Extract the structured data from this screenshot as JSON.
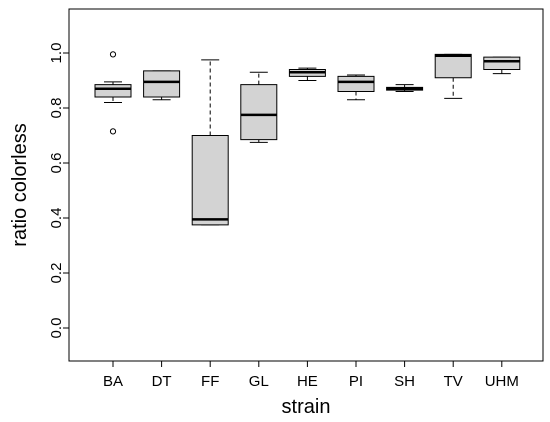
{
  "chart_data": {
    "type": "boxplot",
    "xlabel": "strain",
    "ylabel": "ratio colorless",
    "ylim": [
      -0.12,
      1.16
    ],
    "yticks": [
      "0.0",
      "0.2",
      "0.4",
      "0.6",
      "0.8",
      "1.0"
    ],
    "categories": [
      "BA",
      "DT",
      "FF",
      "GL",
      "HE",
      "PI",
      "SH",
      "TV",
      "UHM"
    ],
    "boxes": [
      {
        "min": 0.82,
        "q1": 0.84,
        "median": 0.87,
        "q3": 0.885,
        "max": 0.895,
        "outliers": [
          0.995,
          0.715
        ]
      },
      {
        "min": 0.83,
        "q1": 0.84,
        "median": 0.895,
        "q3": 0.935,
        "max": 0.935,
        "outliers": []
      },
      {
        "min": 0.375,
        "q1": 0.375,
        "median": 0.395,
        "q3": 0.7,
        "max": 0.975,
        "outliers": []
      },
      {
        "min": 0.675,
        "q1": 0.685,
        "median": 0.775,
        "q3": 0.885,
        "max": 0.93,
        "outliers": []
      },
      {
        "min": 0.9,
        "q1": 0.915,
        "median": 0.93,
        "q3": 0.94,
        "max": 0.945,
        "outliers": []
      },
      {
        "min": 0.83,
        "q1": 0.86,
        "median": 0.895,
        "q3": 0.915,
        "max": 0.92,
        "outliers": []
      },
      {
        "min": 0.86,
        "q1": 0.865,
        "median": 0.87,
        "q3": 0.875,
        "max": 0.885,
        "outliers": []
      },
      {
        "min": 0.835,
        "q1": 0.91,
        "median": 0.99,
        "q3": 0.995,
        "max": 0.995,
        "outliers": []
      },
      {
        "min": 0.925,
        "q1": 0.94,
        "median": 0.97,
        "q3": 0.985,
        "max": 0.985,
        "outliers": []
      }
    ],
    "colors": {
      "box_fill": "#d3d3d3",
      "stroke": "#000000"
    },
    "grid": false
  }
}
